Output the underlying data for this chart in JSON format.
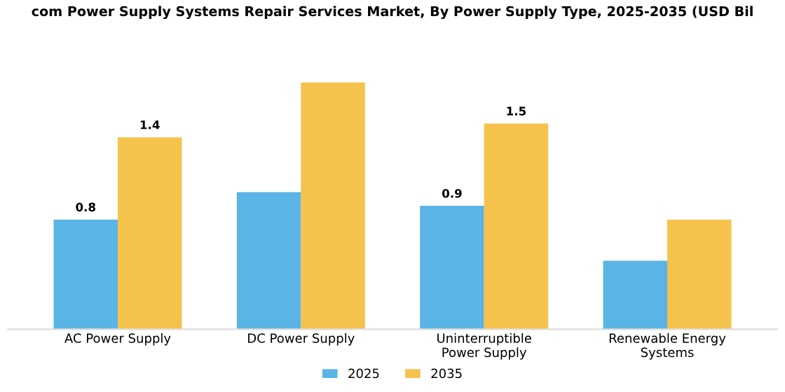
{
  "chart_data": {
    "type": "bar",
    "title": "com Power Supply Systems Repair Services Market, By Power Supply Type, 2025-2035 (USD Bil",
    "categories": [
      "AC Power Supply",
      "DC Power Supply",
      "Uninterruptible\nPower Supply",
      "Renewable Energy\nSystems"
    ],
    "series": [
      {
        "name": "2025",
        "color": "#5ab4e5",
        "values": [
          0.8,
          1.0,
          0.9,
          0.5
        ],
        "value_labels": [
          "0.8",
          null,
          "0.9",
          null
        ]
      },
      {
        "name": "2035",
        "color": "#f5c24c",
        "values": [
          1.4,
          1.8,
          1.5,
          0.8
        ],
        "value_labels": [
          "1.4",
          null,
          "1.5",
          null
        ]
      }
    ],
    "legend": "bottom",
    "grid": false
  }
}
